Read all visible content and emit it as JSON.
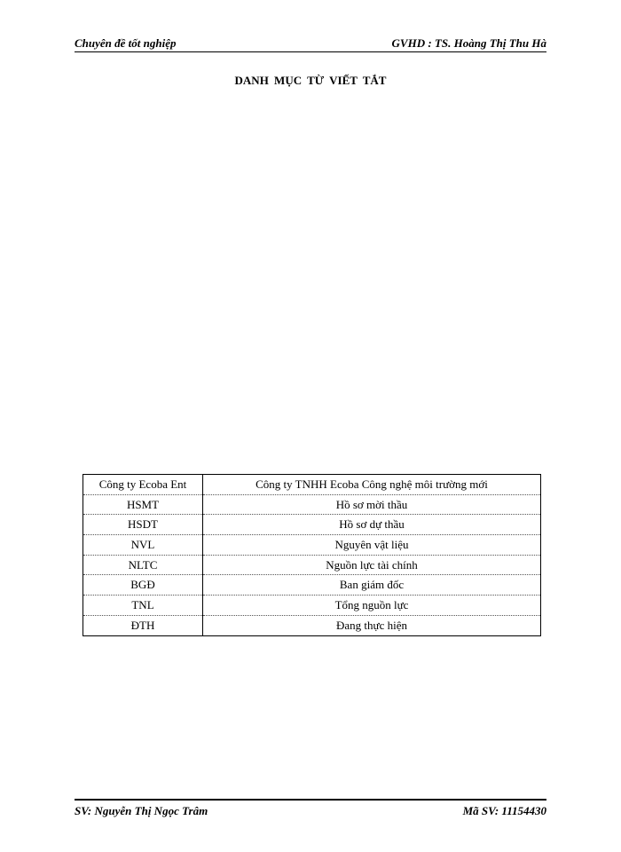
{
  "header": {
    "left": "Chuyên đề tốt nghiệp",
    "right": "GVHD : TS. Hoàng Thị Thu Hà"
  },
  "title": "DANH  MỤC TỪ  VIẾT  TẮT",
  "table": {
    "rows": [
      [
        "Công ty Ecoba Ent",
        "Công ty TNHH  Ecoba Công nghệ môi trường mới"
      ],
      [
        "HSMT",
        "Hồ sơ mời thầu"
      ],
      [
        "HSDT",
        "Hồ sơ dự thầu"
      ],
      [
        "NVL",
        "Nguyên vật  liệu"
      ],
      [
        "NLTC",
        "Nguồn lực tài chính"
      ],
      [
        "BGĐ",
        "Ban giám đốc"
      ],
      [
        "TNL",
        "Tổng nguồn lực"
      ],
      [
        "ĐTH",
        "Đang thực hiện"
      ]
    ]
  },
  "footer": {
    "left": "SV: Nguyễn Thị Ngọc Trâm",
    "right": "Mã SV: 11154430"
  }
}
